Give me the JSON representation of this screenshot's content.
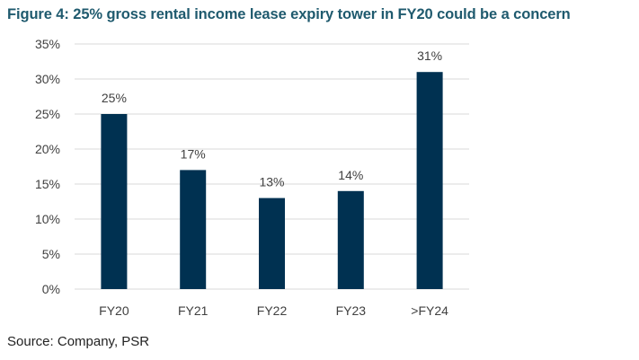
{
  "title": "Figure 4: 25% gross rental income lease expiry tower in FY20 could be a concern",
  "source": "Source: Company, PSR",
  "chart_data": {
    "type": "bar",
    "categories": [
      "FY20",
      "FY21",
      "FY22",
      "FY23",
      ">FY24"
    ],
    "values": [
      25,
      17,
      13,
      14,
      31
    ],
    "data_labels": [
      "25%",
      "17%",
      "13%",
      "14%",
      "31%"
    ],
    "title": "Figure 4: 25% gross rental income lease expiry tower in FY20 could be a concern",
    "xlabel": "",
    "ylabel": "",
    "ylim": [
      0,
      35
    ],
    "yticks": [
      0,
      5,
      10,
      15,
      20,
      25,
      30,
      35
    ],
    "ytick_labels": [
      "0%",
      "5%",
      "10%",
      "15%",
      "20%",
      "25%",
      "30%",
      "35%"
    ],
    "grid": true,
    "legend": "none",
    "bar_color": "#003151",
    "grid_color": "#d9d9d9"
  }
}
